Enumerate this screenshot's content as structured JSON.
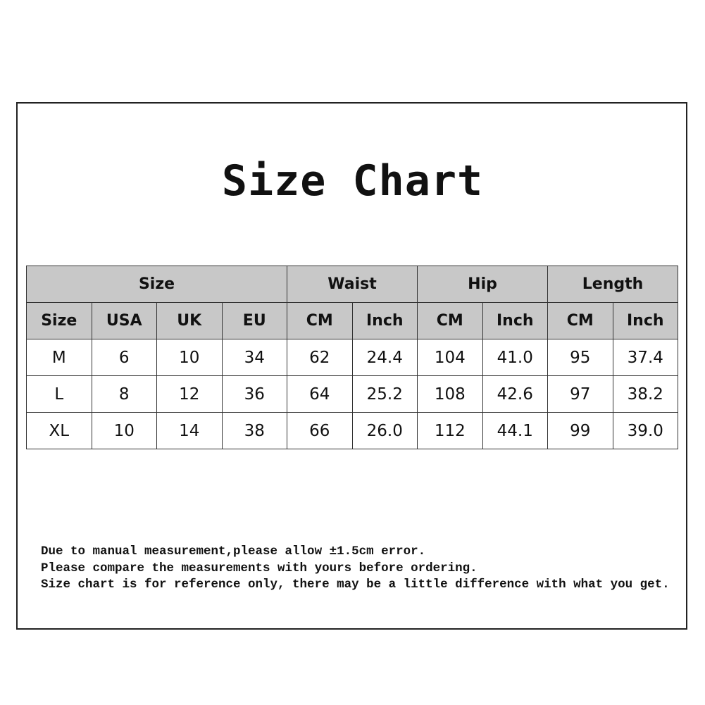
{
  "title": "Size Chart",
  "group_headers": [
    "Size",
    "Waist",
    "Hip",
    "Length"
  ],
  "sub_headers": [
    "Size",
    "USA",
    "UK",
    "EU",
    "CM",
    "Inch",
    "CM",
    "Inch",
    "CM",
    "Inch"
  ],
  "rows": [
    [
      "M",
      "6",
      "10",
      "34",
      "62",
      "24.4",
      "104",
      "41.0",
      "95",
      "37.4"
    ],
    [
      "L",
      "8",
      "12",
      "36",
      "64",
      "25.2",
      "108",
      "42.6",
      "97",
      "38.2"
    ],
    [
      "XL",
      "10",
      "14",
      "38",
      "66",
      "26.0",
      "112",
      "44.1",
      "99",
      "39.0"
    ]
  ],
  "notes": [
    "Due to manual measurement,please allow ±1.5cm error.",
    "Please compare the measurements with yours before ordering.",
    "Size chart is for reference only, there may be a little difference with what you get."
  ],
  "colors": {
    "header_bg": "#c8c8c8",
    "border": "#333333"
  }
}
